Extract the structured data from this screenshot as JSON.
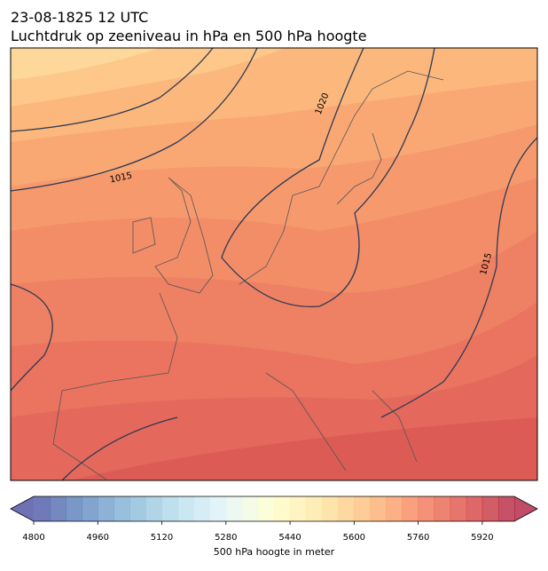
{
  "title": "23-08-1825 12 UTC",
  "subtitle": "Luchtdruk op zeeniveau in hPa en 500 hPa hoogte",
  "isobar_labels": [
    "1015",
    "1020",
    "1015"
  ],
  "colorbar": {
    "label": "500 hPa hoogte in meter",
    "lim": [
      4800,
      6000
    ],
    "step": 40,
    "ticks": [
      4800,
      4960,
      5120,
      5280,
      5440,
      5600,
      5760,
      5920
    ],
    "colormap": [
      "#313695",
      "#4575b4",
      "#74add1",
      "#abd9e9",
      "#e0f3f8",
      "#ffffbf",
      "#fee090",
      "#fdae61",
      "#f46d43",
      "#d73027",
      "#a50026"
    ],
    "alpha": 0.7
  }
}
